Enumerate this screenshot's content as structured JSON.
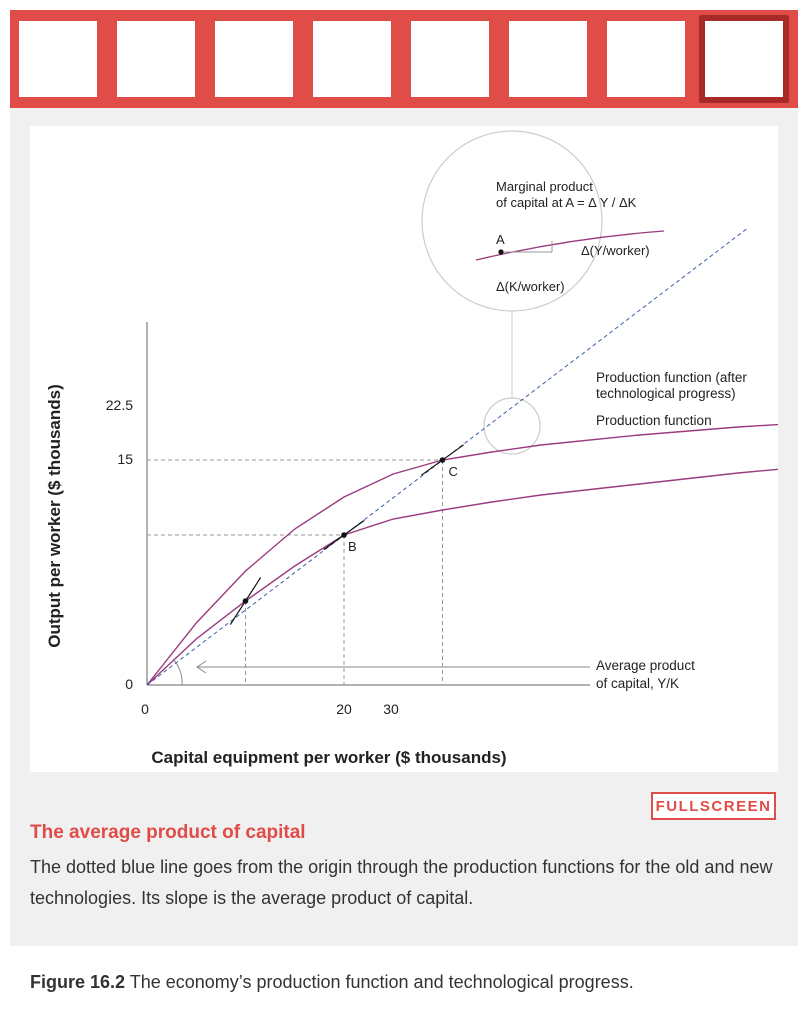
{
  "thumbnails": {
    "count": 8,
    "active_index": 7
  },
  "chart_data": {
    "type": "line",
    "xlabel": "Capital equipment per worker ($ thousands)",
    "ylabel": "Output per worker ($ thousands)",
    "x_ticks": [
      "0",
      "20",
      "30"
    ],
    "y_ticks": [
      "0",
      "15",
      "22.5"
    ],
    "series": [
      {
        "name": "Production function",
        "x": [
          0,
          5,
          10,
          15,
          20,
          25,
          30,
          35,
          40,
          50,
          60,
          70,
          80,
          93
        ],
        "y": [
          0,
          4.6,
          8.4,
          11.9,
          15,
          16.6,
          17.5,
          18.3,
          19,
          20.1,
          21.2,
          22.1,
          22.8,
          23.4
        ]
      },
      {
        "name": "Production function (after technological progress)",
        "x": [
          0,
          5,
          10,
          15,
          20,
          25,
          30,
          35,
          40,
          50,
          60,
          70,
          80,
          93
        ],
        "y": [
          0,
          6.2,
          11.4,
          15.6,
          18.8,
          21.1,
          22.5,
          23.3,
          24,
          25,
          25.8,
          26.4,
          26.9,
          27.3
        ]
      },
      {
        "name": "Average product of capital, Y/K",
        "x": [
          0,
          61
        ],
        "y": [
          0,
          45.7
        ]
      }
    ],
    "points": [
      {
        "label": "",
        "x": 10,
        "y": 8.4
      },
      {
        "label": "B",
        "x": 20,
        "y": 15
      },
      {
        "label": "C",
        "x": 30,
        "y": 22.5
      },
      {
        "label": "A",
        "x": 79,
        "y": 22.7
      }
    ],
    "annotations": {
      "label_new_pf": [
        "Production function (after",
        "technological progress)"
      ],
      "label_old_pf": "Production function",
      "label_ap": [
        "Average product",
        "of capital,  Y/K"
      ],
      "inset_title": [
        "Marginal product",
        "of capital at A = Δ Y / ΔK"
      ],
      "inset_point": "A",
      "inset_dy": "Δ(Y/worker)",
      "inset_dx": "Δ(K/worker)"
    },
    "colors": {
      "curve": "#9b3a7e",
      "ray": "#3a5fa8",
      "accent": "#e04c47"
    }
  },
  "step": {
    "title": "The average product of capital",
    "description": "The dotted blue line goes from the origin through the production functions for the old and new technologies. Its slope is the average product of capital."
  },
  "fullscreen_label": "FULLSCREEN",
  "caption": {
    "number": "Figure 16.2",
    "text": " The economy’s production function and technological progress."
  }
}
